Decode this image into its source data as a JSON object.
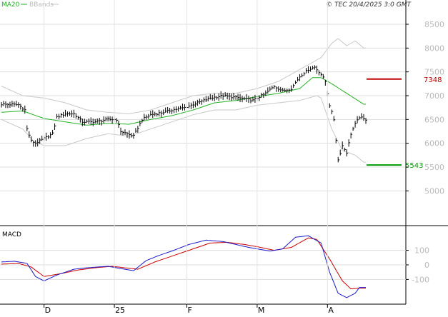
{
  "header": {
    "legend_ma": "MA20",
    "legend_bbands": "BBands",
    "copyright": "© TEC 20/4/2025 3:0 GMT"
  },
  "colors": {
    "candles": "#000000",
    "ma20": "#22b022",
    "bbands": "#c8c8c8",
    "resistance": "#c00000",
    "support": "#009900",
    "macd": "#1a1acc",
    "signal": "#cc0000",
    "grid": "#dddddd",
    "axis": "#000000",
    "tick_label": "#bbbbbb"
  },
  "chart_data": [
    {
      "type": "candlestick",
      "title": "",
      "ylim": [
        4300,
        8800
      ],
      "y_ticks": [
        "8500",
        "8000",
        "7500",
        "7000",
        "6500",
        "6000",
        "5500",
        "5000"
      ],
      "y_tick_values": [
        8500,
        8000,
        7500,
        7000,
        6500,
        6000,
        5500,
        5000
      ],
      "x_ticks": [
        "D",
        "25",
        "F",
        "M",
        "A"
      ],
      "x_tick_index": [
        20,
        53,
        87,
        120,
        153
      ],
      "n_points": 172,
      "close_keys": [
        [
          0,
          6820
        ],
        [
          8,
          6810
        ],
        [
          11,
          6700
        ],
        [
          12,
          6300
        ],
        [
          14,
          6050
        ],
        [
          16,
          6000
        ],
        [
          20,
          6100
        ],
        [
          24,
          6200
        ],
        [
          26,
          6550
        ],
        [
          30,
          6620
        ],
        [
          34,
          6620
        ],
        [
          38,
          6450
        ],
        [
          44,
          6450
        ],
        [
          50,
          6500
        ],
        [
          54,
          6500
        ],
        [
          56,
          6250
        ],
        [
          62,
          6150
        ],
        [
          66,
          6500
        ],
        [
          70,
          6600
        ],
        [
          76,
          6650
        ],
        [
          80,
          6700
        ],
        [
          86,
          6750
        ],
        [
          92,
          6850
        ],
        [
          98,
          6950
        ],
        [
          104,
          7000
        ],
        [
          112,
          6950
        ],
        [
          118,
          6900
        ],
        [
          124,
          7050
        ],
        [
          128,
          7200
        ],
        [
          132,
          7100
        ],
        [
          136,
          7150
        ],
        [
          140,
          7400
        ],
        [
          144,
          7550
        ],
        [
          147,
          7600
        ],
        [
          150,
          7450
        ],
        [
          152,
          7300
        ],
        [
          154,
          6800
        ],
        [
          156,
          6500
        ],
        [
          158,
          5650
        ],
        [
          160,
          5950
        ],
        [
          162,
          5800
        ],
        [
          164,
          6200
        ],
        [
          166,
          6400
        ],
        [
          168,
          6550
        ],
        [
          171,
          6500
        ]
      ],
      "ma20_keys": [
        [
          0,
          6650
        ],
        [
          10,
          6680
        ],
        [
          20,
          6520
        ],
        [
          30,
          6450
        ],
        [
          40,
          6380
        ],
        [
          50,
          6420
        ],
        [
          60,
          6400
        ],
        [
          70,
          6500
        ],
        [
          80,
          6580
        ],
        [
          90,
          6700
        ],
        [
          100,
          6850
        ],
        [
          110,
          6900
        ],
        [
          120,
          6980
        ],
        [
          130,
          7050
        ],
        [
          140,
          7150
        ],
        [
          146,
          7380
        ],
        [
          150,
          7380
        ],
        [
          155,
          7250
        ],
        [
          162,
          7050
        ],
        [
          170,
          6820
        ]
      ],
      "bb_upper_keys": [
        [
          0,
          7200
        ],
        [
          10,
          7000
        ],
        [
          20,
          6950
        ],
        [
          30,
          6850
        ],
        [
          40,
          6700
        ],
        [
          50,
          6650
        ],
        [
          60,
          6620
        ],
        [
          70,
          6700
        ],
        [
          80,
          6850
        ],
        [
          90,
          7000
        ],
        [
          100,
          7050
        ],
        [
          110,
          7050
        ],
        [
          120,
          7150
        ],
        [
          130,
          7300
        ],
        [
          140,
          7550
        ],
        [
          150,
          7800
        ],
        [
          155,
          8100
        ],
        [
          158,
          8200
        ],
        [
          162,
          8050
        ],
        [
          166,
          8150
        ],
        [
          170,
          8000
        ]
      ],
      "bb_lower_keys": [
        [
          0,
          6500
        ],
        [
          10,
          6300
        ],
        [
          15,
          6050
        ],
        [
          20,
          5950
        ],
        [
          30,
          5950
        ],
        [
          40,
          6100
        ],
        [
          50,
          6200
        ],
        [
          60,
          6150
        ],
        [
          70,
          6300
        ],
        [
          80,
          6450
        ],
        [
          90,
          6600
        ],
        [
          100,
          6700
        ],
        [
          110,
          6700
        ],
        [
          120,
          6800
        ],
        [
          130,
          6850
        ],
        [
          140,
          6900
        ],
        [
          148,
          7000
        ],
        [
          150,
          6950
        ],
        [
          155,
          6300
        ],
        [
          160,
          5850
        ],
        [
          166,
          5750
        ],
        [
          170,
          5600
        ]
      ],
      "resistance": {
        "label": "7348",
        "value": 7348
      },
      "support": {
        "label": "5543",
        "value": 5543
      }
    },
    {
      "type": "line",
      "title": "MACD",
      "ylim": [
        -260,
        250
      ],
      "y_ticks": [
        "100",
        "0",
        "-100"
      ],
      "y_tick_values": [
        100,
        0,
        -100
      ],
      "series": [
        {
          "name": "",
          "role": "macd",
          "keys": [
            [
              0,
              20
            ],
            [
              6,
              25
            ],
            [
              12,
              10
            ],
            [
              16,
              -80
            ],
            [
              20,
              -110
            ],
            [
              26,
              -70
            ],
            [
              34,
              -30
            ],
            [
              40,
              -20
            ],
            [
              50,
              -10
            ],
            [
              56,
              -25
            ],
            [
              62,
              -40
            ],
            [
              68,
              30
            ],
            [
              74,
              65
            ],
            [
              80,
              95
            ],
            [
              88,
              140
            ],
            [
              96,
              170
            ],
            [
              104,
              160
            ],
            [
              110,
              140
            ],
            [
              116,
              120
            ],
            [
              120,
              110
            ],
            [
              126,
              95
            ],
            [
              132,
              110
            ],
            [
              138,
              190
            ],
            [
              144,
              200
            ],
            [
              150,
              150
            ],
            [
              154,
              -50
            ],
            [
              158,
              -195
            ],
            [
              162,
              -225
            ],
            [
              166,
              -195
            ],
            [
              168,
              -155
            ]
          ]
        },
        {
          "name": "",
          "role": "signal",
          "keys": [
            [
              0,
              5
            ],
            [
              8,
              10
            ],
            [
              14,
              -15
            ],
            [
              20,
              -80
            ],
            [
              28,
              -60
            ],
            [
              36,
              -35
            ],
            [
              44,
              -20
            ],
            [
              52,
              -10
            ],
            [
              58,
              -20
            ],
            [
              64,
              -30
            ],
            [
              72,
              20
            ],
            [
              80,
              60
            ],
            [
              90,
              110
            ],
            [
              98,
              150
            ],
            [
              106,
              155
            ],
            [
              114,
              140
            ],
            [
              120,
              125
            ],
            [
              128,
              100
            ],
            [
              136,
              120
            ],
            [
              144,
              185
            ],
            [
              148,
              175
            ],
            [
              154,
              40
            ],
            [
              160,
              -110
            ],
            [
              164,
              -165
            ],
            [
              168,
              -160
            ]
          ]
        }
      ]
    }
  ]
}
